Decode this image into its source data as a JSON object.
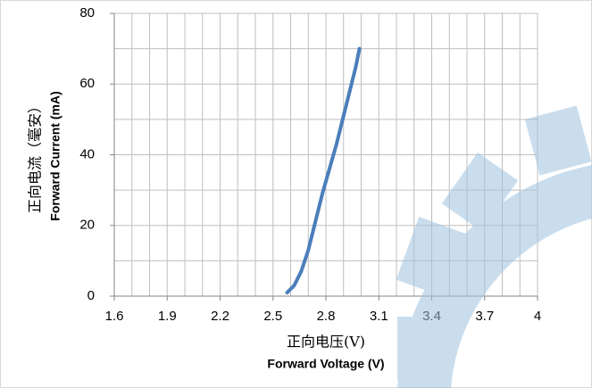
{
  "chart_data": {
    "type": "line",
    "x_label_cn": "正向电压(V)",
    "x_label": "Forward Voltage (V)",
    "y_label_cn": "正向电流（毫安）",
    "y_label": "Forward Current (mA)",
    "x": [
      2.58,
      2.62,
      2.66,
      2.7,
      2.74,
      2.78,
      2.82,
      2.86,
      2.9,
      2.94,
      2.97,
      2.99
    ],
    "series": [
      {
        "name": null,
        "color": "#4a7ebb",
        "values": [
          1,
          3,
          7,
          13,
          21,
          29,
          36,
          43,
          51,
          59,
          65,
          70
        ]
      }
    ],
    "xlim": [
      1.6,
      4
    ],
    "xticks": [
      1.6,
      {
        "value": 1.7,
        "label": null
      },
      {
        "value": 1.8,
        "label": null
      },
      1.9,
      {
        "value": 2.0,
        "label": null
      },
      {
        "value": 2.1,
        "label": null
      },
      2.2,
      {
        "value": 2.3,
        "label": null
      },
      {
        "value": 2.4,
        "label": null
      },
      2.5,
      {
        "value": 2.6,
        "label": null
      },
      {
        "value": 2.7,
        "label": null
      },
      2.8,
      {
        "value": 2.9,
        "label": null
      },
      {
        "value": 3.0,
        "label": null
      },
      3.1,
      {
        "value": 3.2,
        "label": null
      },
      {
        "value": 3.3,
        "label": null
      },
      3.4,
      {
        "value": 3.5,
        "label": null
      },
      {
        "value": 3.6,
        "label": null
      },
      3.7,
      {
        "value": 3.8,
        "label": null
      },
      {
        "value": 3.9,
        "label": null
      },
      4
    ],
    "ylim": [
      0,
      80
    ],
    "yticks": [
      0,
      {
        "value": 10,
        "label": null
      },
      20,
      {
        "value": 30,
        "label": null
      },
      40,
      {
        "value": 50,
        "label": null
      },
      60,
      {
        "value": 70,
        "label": null
      },
      80
    ],
    "grid": true
  }
}
